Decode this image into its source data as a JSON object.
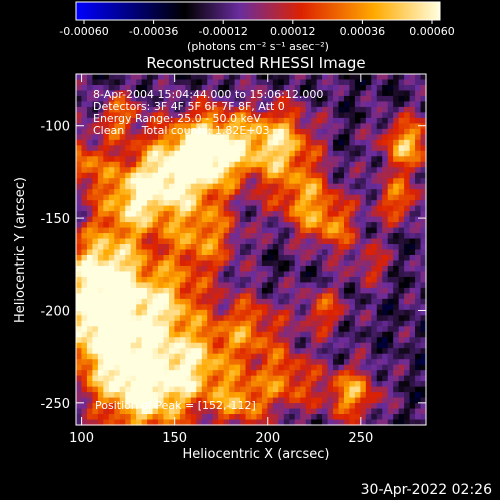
{
  "chart_data": {
    "type": "heatmap",
    "title": "Reconstructed RHESSI Image",
    "xlabel": "Heliocentric X (arcsec)",
    "ylabel": "Heliocentric Y (arcsec)",
    "xlim": [
      97,
      285
    ],
    "ylim": [
      -262,
      -72
    ],
    "x_ticks": [
      100,
      150,
      200,
      250
    ],
    "y_ticks": [
      -100,
      -150,
      -200,
      -250
    ],
    "colorbar": {
      "min": -0.0006,
      "max": 0.0006,
      "ticks": [
        "-0.00060",
        "-0.00036",
        "-0.00012",
        "0.00012",
        "0.00036",
        "0.00060"
      ],
      "unit_label": "(photons cm⁻² s⁻¹ asec⁻²)",
      "colors": [
        "#0000ff",
        "#000000",
        "#6a2d9e",
        "#dd2200",
        "#ffaa00",
        "#ffffe0"
      ]
    },
    "annotations": [
      "8-Apr-2004 15:04:44.000 to 15:06:12.000",
      "Detectors: 3F 4F 5F 6F 7F 8F, Att 0",
      "Energy Range: 25.0 - 50.0 keV",
      "Clean     Total counts: 1.82E+03"
    ],
    "peak_label": "Position of Peak = [152,-112]",
    "peak": [
      152,
      -112
    ],
    "grid": false
  },
  "timestamp": "30-Apr-2022 02:26"
}
